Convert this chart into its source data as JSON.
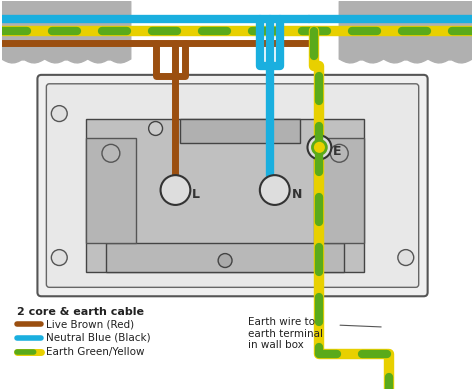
{
  "bg_color": "#ffffff",
  "wall_color": "#b0b0b0",
  "brown_color": "#9B4F10",
  "blue_color": "#1aafdf",
  "earth_green": "#5aaa1a",
  "earth_yellow": "#e8d000",
  "text_color": "#222222",
  "legend_title": "2 core & earth cable",
  "legend_live": "Live Brown (Red)",
  "legend_neutral": "Neutral Blue (Black)",
  "legend_earth": "Earth Green/Yellow",
  "annotation": "Earth wire to\nearth terminal\nin wall box",
  "label_L": "L",
  "label_N": "N",
  "label_E": "E"
}
